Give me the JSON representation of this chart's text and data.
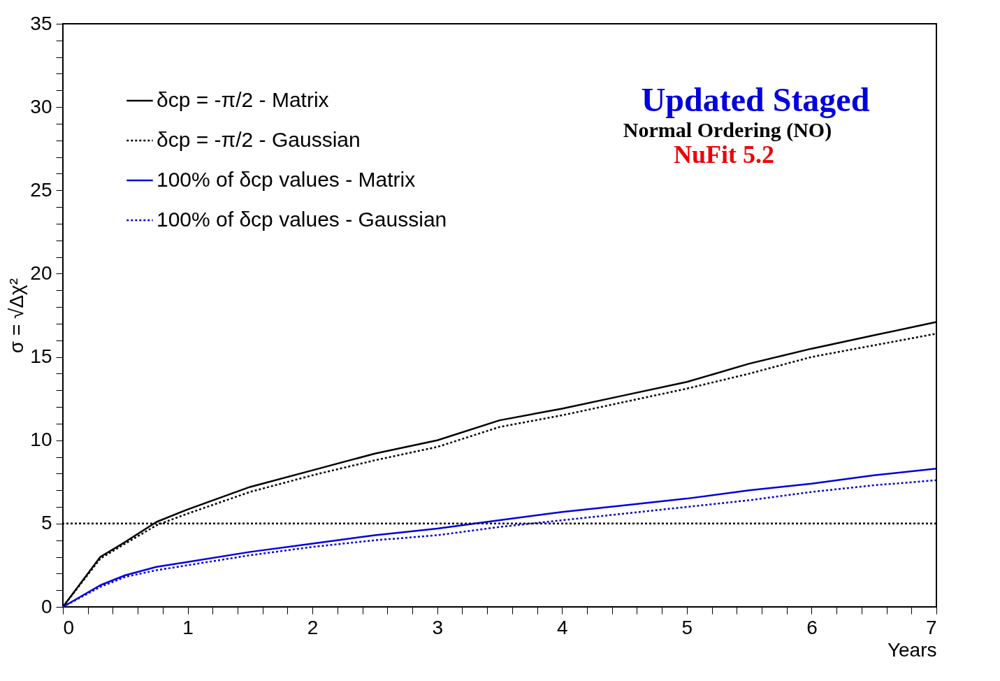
{
  "chart_data": {
    "type": "line",
    "xlabel": "Years",
    "ylabel": "σ = √Δχ²",
    "xlim": [
      0,
      7
    ],
    "ylim": [
      0,
      35
    ],
    "xticks": [
      0,
      {
        "value": 0.2,
        "label": null
      },
      {
        "value": 0.4,
        "label": null
      },
      {
        "value": 0.6,
        "label": null
      },
      {
        "value": 0.8,
        "label": null
      },
      1,
      {
        "value": 1.2,
        "label": null
      },
      {
        "value": 1.4,
        "label": null
      },
      {
        "value": 1.6,
        "label": null
      },
      {
        "value": 1.8,
        "label": null
      },
      2,
      {
        "value": 2.2,
        "label": null
      },
      {
        "value": 2.4,
        "label": null
      },
      {
        "value": 2.6,
        "label": null
      },
      {
        "value": 2.8,
        "label": null
      },
      3,
      {
        "value": 3.2,
        "label": null
      },
      {
        "value": 3.4,
        "label": null
      },
      {
        "value": 3.6,
        "label": null
      },
      {
        "value": 3.8,
        "label": null
      },
      4,
      {
        "value": 4.2,
        "label": null
      },
      {
        "value": 4.4,
        "label": null
      },
      {
        "value": 4.6,
        "label": null
      },
      {
        "value": 4.8,
        "label": null
      },
      5,
      {
        "value": 5.2,
        "label": null
      },
      {
        "value": 5.4,
        "label": null
      },
      {
        "value": 5.6,
        "label": null
      },
      {
        "value": 5.8,
        "label": null
      },
      6,
      {
        "value": 6.2,
        "label": null
      },
      {
        "value": 6.4,
        "label": null
      },
      {
        "value": 6.6,
        "label": null
      },
      {
        "value": 6.8,
        "label": null
      },
      7
    ],
    "yticks": [
      0,
      {
        "value": 1,
        "label": null
      },
      {
        "value": 2,
        "label": null
      },
      {
        "value": 3,
        "label": null
      },
      {
        "value": 4,
        "label": null
      },
      5,
      {
        "value": 6,
        "label": null
      },
      {
        "value": 7,
        "label": null
      },
      {
        "value": 8,
        "label": null
      },
      {
        "value": 9,
        "label": null
      },
      10,
      {
        "value": 11,
        "label": null
      },
      {
        "value": 12,
        "label": null
      },
      {
        "value": 13,
        "label": null
      },
      {
        "value": 14,
        "label": null
      },
      15,
      {
        "value": 16,
        "label": null
      },
      {
        "value": 17,
        "label": null
      },
      {
        "value": 18,
        "label": null
      },
      {
        "value": 19,
        "label": null
      },
      20,
      {
        "value": 21,
        "label": null
      },
      {
        "value": 22,
        "label": null
      },
      {
        "value": 23,
        "label": null
      },
      {
        "value": 24,
        "label": null
      },
      25,
      {
        "value": 26,
        "label": null
      },
      {
        "value": 27,
        "label": null
      },
      {
        "value": 28,
        "label": null
      },
      {
        "value": 29,
        "label": null
      },
      30,
      {
        "value": 31,
        "label": null
      },
      {
        "value": 32,
        "label": null
      },
      {
        "value": 33,
        "label": null
      },
      {
        "value": 34,
        "label": null
      },
      35
    ],
    "x": [
      0,
      0.3,
      0.5,
      0.75,
      1,
      1.5,
      2,
      2.5,
      3,
      3.5,
      4,
      4.5,
      5,
      5.5,
      6,
      6.5,
      7
    ],
    "series": [
      {
        "name": "δcp = -π/2 - Matrix",
        "color": "#000000",
        "line_style": "solid",
        "values": [
          0,
          3.0,
          3.9,
          5.1,
          5.85,
          7.2,
          8.2,
          9.2,
          10.0,
          11.2,
          11.9,
          12.7,
          13.5,
          14.6,
          15.5,
          16.3,
          17.1
        ]
      },
      {
        "name": "δcp = -π/2 - Gaussian",
        "color": "#000000",
        "line_style": "dotted",
        "values": [
          0,
          2.9,
          3.8,
          4.9,
          5.6,
          6.9,
          7.9,
          8.8,
          9.6,
          10.8,
          11.5,
          12.3,
          13.1,
          14.0,
          15.0,
          15.7,
          16.4
        ]
      },
      {
        "name": "100% of δcp values - Matrix",
        "color": "#0000dd",
        "line_style": "solid",
        "values": [
          0,
          1.3,
          1.9,
          2.4,
          2.7,
          3.3,
          3.8,
          4.3,
          4.7,
          5.2,
          5.7,
          6.1,
          6.5,
          7.0,
          7.4,
          7.9,
          8.3
        ]
      },
      {
        "name": "100% of δcp values - Gaussian",
        "color": "#0000dd",
        "line_style": "dotted",
        "values": [
          0,
          1.2,
          1.8,
          2.2,
          2.5,
          3.1,
          3.6,
          4.0,
          4.3,
          4.8,
          5.2,
          5.6,
          6.0,
          6.4,
          6.9,
          7.3,
          7.6
        ]
      }
    ],
    "ref_lines": [
      {
        "axis": "y",
        "value": 5,
        "label": null,
        "color": "#000000",
        "line_style": "dotted"
      }
    ],
    "annotations": [
      "Updated Staged",
      "Normal Ordering (NO)",
      "NuFit 5.2"
    ],
    "legend": "top left",
    "grid": false,
    "marker": "none"
  }
}
